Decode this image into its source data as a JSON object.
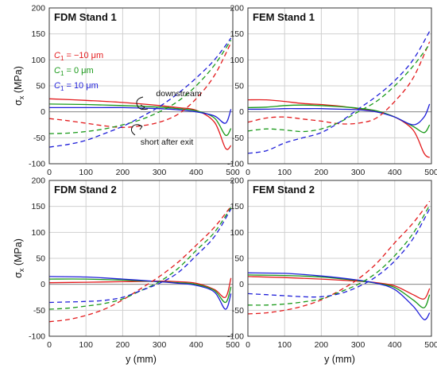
{
  "chart_data": [
    {
      "type": "line",
      "title": "FDM Stand 1",
      "ylabel": "σx (MPa)",
      "xlabel": "",
      "xlim": [
        0,
        500
      ],
      "ylim": [
        -100,
        200
      ],
      "xticks": [
        0,
        100,
        200,
        300,
        400,
        500
      ],
      "yticks": [
        -100,
        -50,
        0,
        50,
        100,
        150,
        200
      ],
      "grid": true,
      "legend": {
        "placement": "upper-left",
        "entries": [
          {
            "sym": "C",
            "sub": "1",
            "text": " = −10 μm",
            "color": "#e31a1c"
          },
          {
            "sym": "C",
            "sub": "1",
            "text": " = 0 μm",
            "color": "#1a9a1a"
          },
          {
            "sym": "C",
            "sub": "1",
            "text": " = 10 μm",
            "color": "#1f1fd9"
          }
        ]
      },
      "annotations": [
        "downstream",
        "short after exit"
      ],
      "series": [
        {
          "style": "solid",
          "color": "#e31a1c",
          "x": [
            0,
            100,
            200,
            300,
            350,
            400,
            450,
            480,
            495
          ],
          "y": [
            25,
            22,
            18,
            12,
            8,
            3,
            -20,
            -70,
            -65
          ]
        },
        {
          "style": "solid",
          "color": "#1a9a1a",
          "x": [
            0,
            100,
            200,
            300,
            350,
            400,
            450,
            480,
            495
          ],
          "y": [
            15,
            14,
            12,
            9,
            6,
            2,
            -12,
            -45,
            -32
          ]
        },
        {
          "style": "solid",
          "color": "#1f1fd9",
          "x": [
            0,
            100,
            200,
            300,
            350,
            400,
            450,
            480,
            495
          ],
          "y": [
            8,
            8,
            8,
            6,
            4,
            0,
            -8,
            -22,
            5
          ]
        },
        {
          "style": "dashed",
          "color": "#e31a1c",
          "x": [
            0,
            50,
            100,
            150,
            200,
            250,
            300,
            350,
            400,
            450,
            495
          ],
          "y": [
            -13,
            -17,
            -22,
            -27,
            -30,
            -27,
            -20,
            -5,
            25,
            70,
            133
          ]
        },
        {
          "style": "dashed",
          "color": "#1a9a1a",
          "x": [
            0,
            50,
            100,
            150,
            200,
            250,
            300,
            350,
            400,
            450,
            495
          ],
          "y": [
            -42,
            -41,
            -38,
            -33,
            -25,
            -15,
            0,
            20,
            50,
            90,
            138
          ]
        },
        {
          "style": "dashed",
          "color": "#1f1fd9",
          "x": [
            0,
            50,
            100,
            150,
            200,
            250,
            300,
            350,
            400,
            450,
            495
          ],
          "y": [
            -68,
            -63,
            -55,
            -42,
            -28,
            -10,
            10,
            35,
            65,
            100,
            142
          ]
        }
      ]
    },
    {
      "type": "line",
      "title": "FEM Stand 1",
      "ylabel": "",
      "xlabel": "",
      "xlim": [
        0,
        500
      ],
      "ylim": [
        -100,
        200
      ],
      "xticks": [
        0,
        100,
        200,
        300,
        400,
        500
      ],
      "yticks": [
        -100,
        -50,
        0,
        50,
        100,
        150,
        200
      ],
      "grid": true,
      "series": [
        {
          "style": "solid",
          "color": "#e31a1c",
          "x": [
            0,
            50,
            100,
            150,
            200,
            250,
            300,
            350,
            400,
            450,
            480,
            495
          ],
          "y": [
            23,
            23,
            20,
            16,
            14,
            11,
            6,
            0,
            -10,
            -35,
            -80,
            -88
          ]
        },
        {
          "style": "solid",
          "color": "#1a9a1a",
          "x": [
            0,
            50,
            100,
            150,
            200,
            250,
            300,
            350,
            400,
            450,
            480,
            495
          ],
          "y": [
            8,
            9,
            12,
            13,
            12,
            10,
            7,
            2,
            -10,
            -28,
            -40,
            -25
          ]
        },
        {
          "style": "solid",
          "color": "#1f1fd9",
          "x": [
            0,
            50,
            100,
            150,
            200,
            250,
            300,
            350,
            400,
            450,
            480,
            495
          ],
          "y": [
            5,
            5,
            6,
            6,
            6,
            5,
            4,
            0,
            -10,
            -25,
            -10,
            15
          ]
        },
        {
          "style": "dashed",
          "color": "#e31a1c",
          "x": [
            0,
            50,
            100,
            150,
            200,
            250,
            300,
            350,
            400,
            450,
            495
          ],
          "y": [
            -20,
            -12,
            -10,
            -14,
            -18,
            -23,
            -22,
            -12,
            20,
            65,
            135
          ]
        },
        {
          "style": "dashed",
          "color": "#1a9a1a",
          "x": [
            0,
            50,
            100,
            150,
            200,
            250,
            300,
            350,
            400,
            450,
            495
          ],
          "y": [
            -37,
            -33,
            -35,
            -38,
            -33,
            -20,
            0,
            20,
            50,
            88,
            130
          ]
        },
        {
          "style": "dashed",
          "color": "#1f1fd9",
          "x": [
            0,
            50,
            100,
            150,
            200,
            250,
            300,
            350,
            400,
            450,
            495
          ],
          "y": [
            -80,
            -75,
            -60,
            -50,
            -40,
            -20,
            5,
            30,
            60,
            100,
            155
          ]
        }
      ]
    },
    {
      "type": "line",
      "title": "FDM Stand 2",
      "ylabel": "σx (MPa)",
      "xlabel": "y (mm)",
      "xlim": [
        0,
        500
      ],
      "ylim": [
        -100,
        200
      ],
      "xticks": [
        0,
        100,
        200,
        300,
        400,
        500
      ],
      "yticks": [
        -100,
        -50,
        0,
        50,
        100,
        150,
        200
      ],
      "grid": true,
      "series": [
        {
          "style": "solid",
          "color": "#e31a1c",
          "x": [
            0,
            100,
            200,
            300,
            350,
            400,
            450,
            480,
            495
          ],
          "y": [
            3,
            4,
            5,
            6,
            5,
            2,
            -10,
            -25,
            12
          ]
        },
        {
          "style": "solid",
          "color": "#1a9a1a",
          "x": [
            0,
            100,
            200,
            300,
            350,
            400,
            450,
            480,
            495
          ],
          "y": [
            10,
            10,
            8,
            5,
            3,
            0,
            -12,
            -35,
            -5
          ]
        },
        {
          "style": "solid",
          "color": "#1f1fd9",
          "x": [
            0,
            100,
            200,
            300,
            350,
            400,
            450,
            480,
            495
          ],
          "y": [
            15,
            14,
            10,
            5,
            2,
            -2,
            -15,
            -48,
            -18
          ]
        },
        {
          "style": "dashed",
          "color": "#e31a1c",
          "x": [
            0,
            50,
            100,
            150,
            200,
            250,
            300,
            350,
            400,
            450,
            495
          ],
          "y": [
            -72,
            -68,
            -60,
            -48,
            -30,
            -8,
            15,
            42,
            75,
            110,
            150
          ]
        },
        {
          "style": "dashed",
          "color": "#1a9a1a",
          "x": [
            0,
            50,
            100,
            150,
            200,
            250,
            300,
            350,
            400,
            450,
            495
          ],
          "y": [
            -48,
            -46,
            -42,
            -37,
            -28,
            -12,
            5,
            30,
            65,
            100,
            148
          ]
        },
        {
          "style": "dashed",
          "color": "#1f1fd9",
          "x": [
            0,
            50,
            100,
            150,
            200,
            250,
            300,
            350,
            400,
            450,
            495
          ],
          "y": [
            -35,
            -34,
            -33,
            -31,
            -25,
            -12,
            2,
            22,
            55,
            92,
            145
          ]
        }
      ]
    },
    {
      "type": "line",
      "title": "FEM Stand 2",
      "ylabel": "",
      "xlabel": "y (mm)",
      "xlim": [
        0,
        500
      ],
      "ylim": [
        -100,
        200
      ],
      "xticks": [
        0,
        100,
        200,
        300,
        400,
        500
      ],
      "yticks": [
        -100,
        -50,
        0,
        50,
        100,
        150,
        200
      ],
      "grid": true,
      "series": [
        {
          "style": "solid",
          "color": "#e31a1c",
          "x": [
            0,
            100,
            200,
            300,
            350,
            400,
            450,
            480,
            495
          ],
          "y": [
            15,
            13,
            10,
            6,
            3,
            -3,
            -20,
            -28,
            -8
          ]
        },
        {
          "style": "solid",
          "color": "#1a9a1a",
          "x": [
            0,
            100,
            200,
            300,
            350,
            400,
            450,
            480,
            495
          ],
          "y": [
            18,
            17,
            14,
            7,
            2,
            -6,
            -30,
            -45,
            -20
          ]
        },
        {
          "style": "solid",
          "color": "#1f1fd9",
          "x": [
            0,
            100,
            200,
            300,
            350,
            400,
            450,
            480,
            495
          ],
          "y": [
            22,
            21,
            16,
            8,
            2,
            -10,
            -42,
            -68,
            -55
          ]
        },
        {
          "style": "dashed",
          "color": "#e31a1c",
          "x": [
            0,
            50,
            100,
            150,
            200,
            250,
            300,
            350,
            400,
            450,
            495
          ],
          "y": [
            -57,
            -55,
            -50,
            -42,
            -30,
            -12,
            10,
            40,
            80,
            118,
            160
          ]
        },
        {
          "style": "dashed",
          "color": "#1a9a1a",
          "x": [
            0,
            50,
            100,
            150,
            200,
            250,
            300,
            350,
            400,
            450,
            495
          ],
          "y": [
            -40,
            -40,
            -38,
            -34,
            -28,
            -15,
            0,
            22,
            55,
            98,
            152
          ]
        },
        {
          "style": "dashed",
          "color": "#1f1fd9",
          "x": [
            0,
            50,
            100,
            150,
            200,
            250,
            300,
            350,
            400,
            450,
            495
          ],
          "y": [
            -18,
            -20,
            -22,
            -24,
            -24,
            -18,
            -5,
            15,
            45,
            88,
            145
          ]
        }
      ]
    }
  ]
}
